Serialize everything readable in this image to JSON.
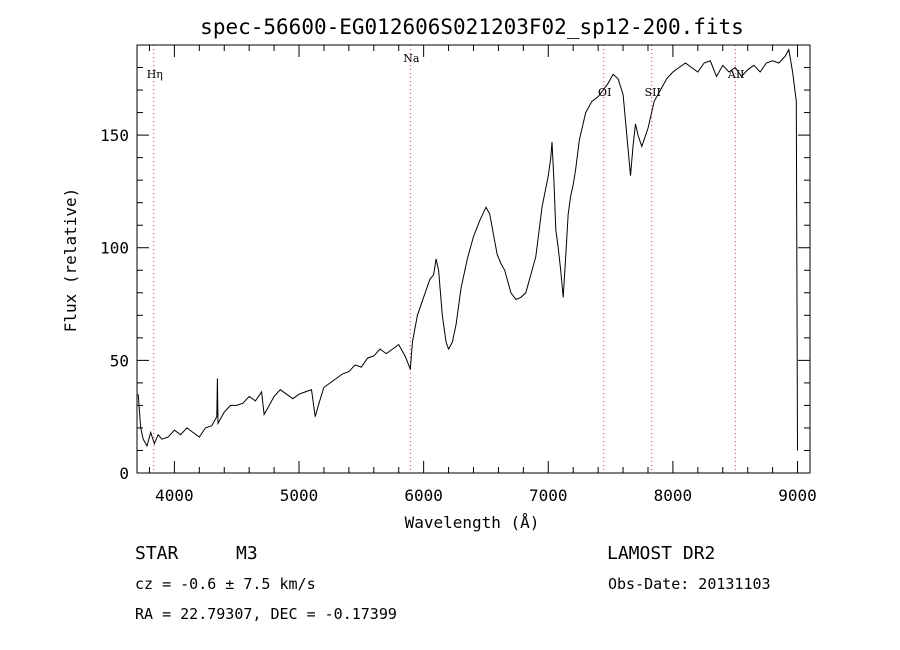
{
  "chart_data": {
    "type": "line",
    "title": "spec-56600-EG012606S021203F02_sp12-200.fits",
    "xlabel": "Wavelength (Å)",
    "ylabel": "Flux (relative)",
    "xlim": [
      3700,
      9100
    ],
    "ylim": [
      0,
      190
    ],
    "xticks": [
      4000,
      5000,
      6000,
      7000,
      8000,
      9000
    ],
    "yticks": [
      0,
      50,
      100,
      150
    ],
    "xtick_labels": [
      "4000",
      "5000",
      "6000",
      "7000",
      "8000",
      "9000"
    ],
    "ytick_labels": [
      "0",
      "50",
      "100",
      "150"
    ],
    "grid": false,
    "line_color": "#000000",
    "marker_color": "#cc3333",
    "lines": [
      {
        "label": "Hη",
        "x": 3835
      },
      {
        "label": "Na",
        "x": 5893
      },
      {
        "label": "OI",
        "x": 7445
      },
      {
        "label": "SII",
        "x": 7830
      },
      {
        "label": "AII",
        "x": 8500
      }
    ],
    "series": [
      {
        "x": [
          3710,
          3730,
          3750,
          3780,
          3810,
          3840,
          3870,
          3900,
          3950,
          4000,
          4050,
          4100,
          4150,
          4200,
          4250,
          4300,
          4340,
          4345,
          4350,
          4400,
          4450,
          4500,
          4550,
          4600,
          4650,
          4700,
          4720,
          4750,
          4800,
          4850,
          4900,
          4950,
          5000,
          5050,
          5100,
          5130,
          5160,
          5200,
          5250,
          5300,
          5350,
          5400,
          5450,
          5500,
          5550,
          5600,
          5650,
          5700,
          5750,
          5800,
          5850,
          5880,
          5893,
          5910,
          5950,
          6000,
          6050,
          6080,
          6100,
          6120,
          6150,
          6180,
          6200,
          6230,
          6260,
          6300,
          6350,
          6400,
          6450,
          6500,
          6530,
          6560,
          6590,
          6620,
          6650,
          6700,
          6740,
          6780,
          6820,
          6860,
          6900,
          6950,
          7000,
          7020,
          7030,
          7045,
          7060,
          7080,
          7100,
          7120,
          7140,
          7160,
          7180,
          7200,
          7220,
          7250,
          7300,
          7350,
          7400,
          7440,
          7480,
          7520,
          7560,
          7600,
          7630,
          7660,
          7680,
          7700,
          7720,
          7750,
          7800,
          7850,
          7900,
          7950,
          8000,
          8050,
          8100,
          8150,
          8200,
          8250,
          8300,
          8350,
          8400,
          8450,
          8500,
          8550,
          8600,
          8650,
          8700,
          8750,
          8800,
          8850,
          8900,
          8930,
          8960,
          8990,
          9000
        ],
        "y": [
          35,
          20,
          15,
          12,
          18,
          13,
          17,
          15,
          16,
          19,
          17,
          20,
          18,
          16,
          20,
          21,
          25,
          42,
          22,
          27,
          30,
          30,
          31,
          34,
          32,
          36,
          26,
          29,
          34,
          37,
          35,
          33,
          35,
          36,
          37,
          25,
          31,
          38,
          40,
          42,
          44,
          45,
          48,
          47,
          51,
          52,
          55,
          53,
          55,
          57,
          52,
          48,
          46,
          58,
          70,
          78,
          86,
          88,
          95,
          90,
          70,
          58,
          55,
          58,
          66,
          82,
          95,
          105,
          112,
          118,
          115,
          106,
          97,
          93,
          90,
          80,
          77,
          78,
          80,
          88,
          96,
          118,
          132,
          140,
          147,
          130,
          108,
          100,
          90,
          78,
          96,
          115,
          123,
          128,
          135,
          148,
          160,
          165,
          167,
          170,
          173,
          177,
          175,
          168,
          150,
          132,
          145,
          155,
          150,
          145,
          153,
          165,
          170,
          175,
          178,
          180,
          182,
          180,
          178,
          182,
          183,
          176,
          181,
          178,
          180,
          176,
          179,
          181,
          178,
          182,
          183,
          182,
          185,
          188,
          178,
          165,
          10
        ]
      }
    ],
    "info": {
      "object_type": "STAR",
      "subclass": "M3",
      "survey": "LAMOST DR2",
      "cz": "cz = -0.6 ± 7.5 km/s",
      "obs_date": "Obs-Date: 20131103",
      "coords": "RA =  22.79307, DEC =  -0.17399"
    }
  }
}
